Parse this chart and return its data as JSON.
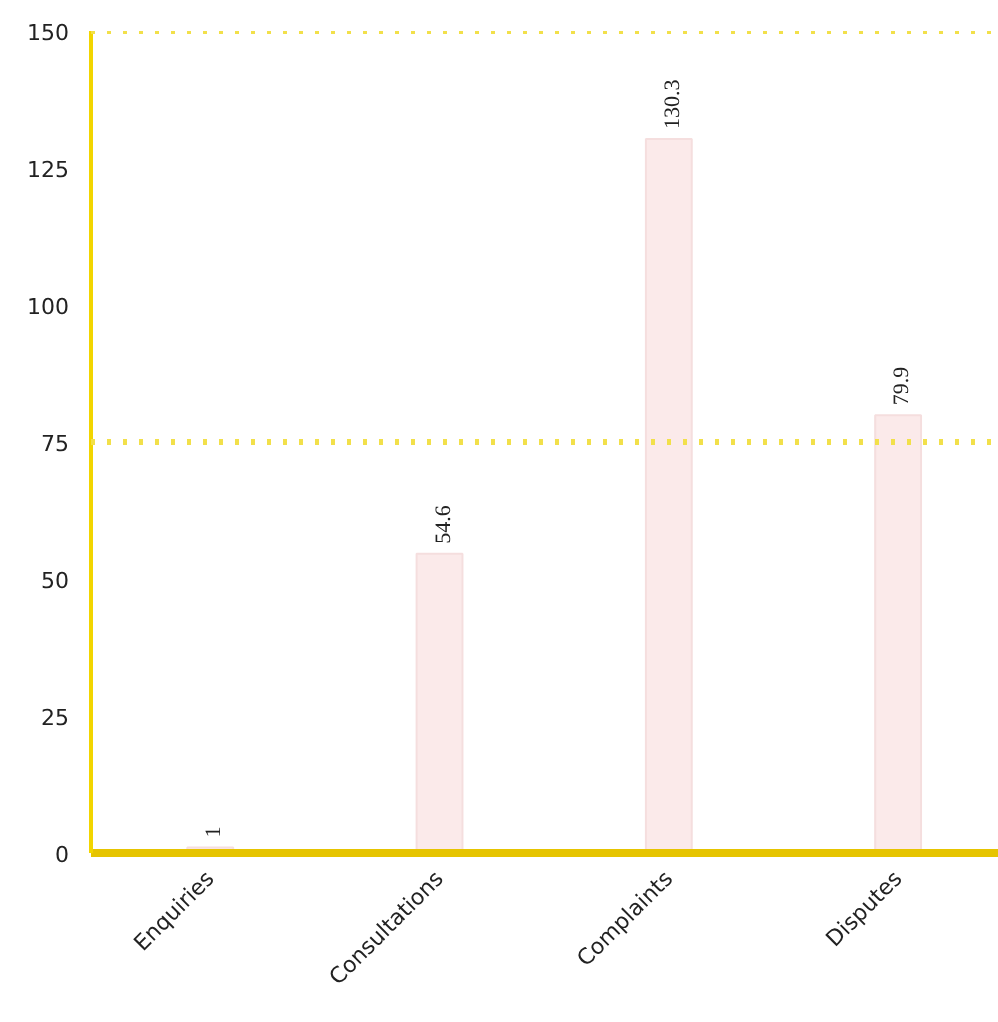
{
  "chart_data": {
    "type": "bar",
    "categories": [
      "Enquiries",
      "Consultations",
      "Complaints",
      "Disputes"
    ],
    "values": [
      1,
      54.6,
      130.3,
      79.9
    ],
    "color": "#fbeaea",
    "data_labels": true,
    "ylim": [
      0,
      150
    ],
    "yticks": [
      0,
      25,
      50,
      75,
      100,
      125,
      150
    ],
    "grid": false,
    "ref_lines": [
      {
        "axis": "y",
        "value": 75,
        "color": "#f2e04a",
        "line_style": "dotted"
      },
      {
        "axis": "y",
        "value": 150,
        "color": "#f2e04a",
        "line_style": "dotted"
      }
    ]
  }
}
